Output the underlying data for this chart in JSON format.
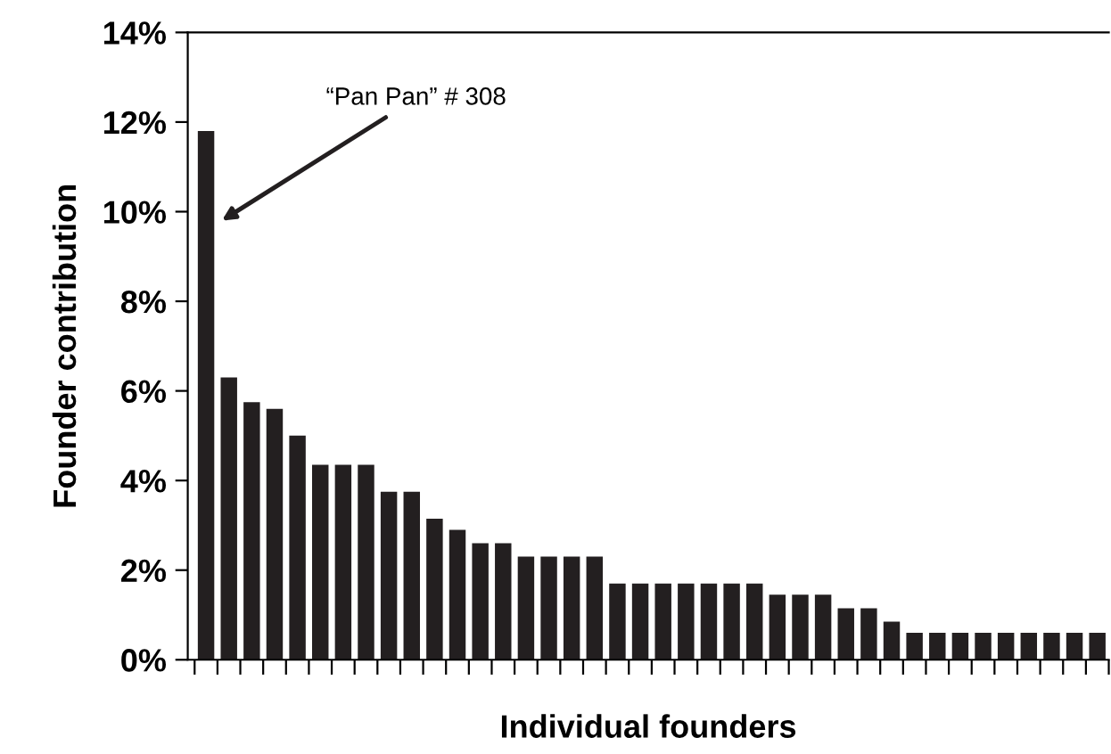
{
  "chart_data": {
    "type": "bar",
    "xlabel": "Individual founders",
    "ylabel": "Founder contribution",
    "categories": [
      null,
      null,
      null,
      null,
      null,
      null,
      null,
      null,
      null,
      null,
      null,
      null,
      null,
      null,
      null,
      null,
      null,
      null,
      null,
      null,
      null,
      null,
      null,
      null,
      null,
      null,
      null,
      null,
      null,
      null,
      null,
      null,
      null,
      null,
      null,
      null,
      null,
      null,
      null,
      null
    ],
    "values": [
      11.8,
      6.3,
      5.75,
      5.6,
      5.0,
      4.35,
      4.35,
      4.35,
      3.75,
      3.75,
      3.15,
      2.9,
      2.6,
      2.6,
      2.3,
      2.3,
      2.3,
      2.3,
      1.7,
      1.7,
      1.7,
      1.7,
      1.7,
      1.7,
      1.7,
      1.45,
      1.45,
      1.45,
      1.15,
      1.15,
      0.85,
      0.6,
      0.6,
      0.6,
      0.6,
      0.6,
      0.6,
      0.6,
      0.6,
      0.6
    ],
    "color": "#231f20",
    "ylim": [
      0,
      14
    ],
    "yticks": [
      {
        "value": 0,
        "label": "0%"
      },
      {
        "value": 2,
        "label": "2%"
      },
      {
        "value": 4,
        "label": "4%"
      },
      {
        "value": 6,
        "label": "6%"
      },
      {
        "value": 8,
        "label": "8%"
      },
      {
        "value": 10,
        "label": "10%"
      },
      {
        "value": 12,
        "label": "12%"
      },
      {
        "value": 14,
        "label": "14%"
      }
    ],
    "tick_labels": "y",
    "grid": false,
    "annotations": [
      "“Pan Pan” # 308"
    ]
  }
}
